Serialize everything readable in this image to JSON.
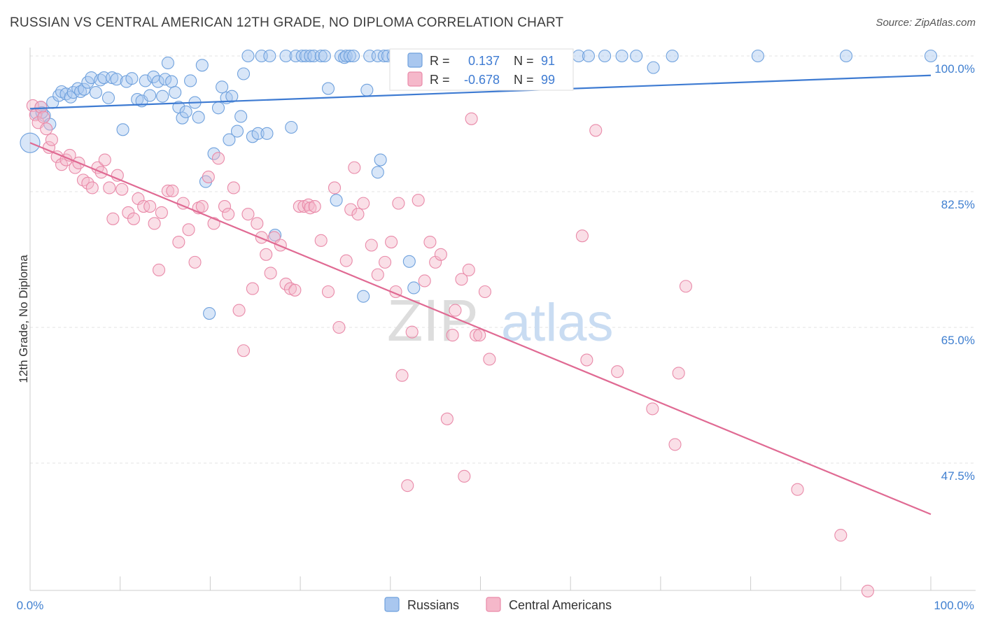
{
  "title": "RUSSIAN VS CENTRAL AMERICAN 12TH GRADE, NO DIPLOMA CORRELATION CHART",
  "source": "Source: ZipAtlas.com",
  "watermark": {
    "left": "ZIP",
    "right": "atlas"
  },
  "colors": {
    "blue": "#6fa1dd",
    "blue_fill": "#a9c7ef",
    "blue_line": "#3e7bd2",
    "pink": "#e98aa9",
    "pink_fill": "#f5b8ca",
    "pink_line": "#e06a93",
    "axis_text": "#3f7fd0",
    "grid": "#e3e3e3",
    "text": "#333333"
  },
  "chart_data": {
    "type": "scatter",
    "xlabel": "",
    "ylabel": "12th Grade, No Diploma",
    "xlim": [
      0,
      100
    ],
    "ylim": [
      30,
      100
    ],
    "x_tick_labels": [
      "0.0%",
      "100.0%"
    ],
    "y_ticks": [
      {
        "value": 100.0,
        "label": "100.0%"
      },
      {
        "value": 82.5,
        "label": "82.5%"
      },
      {
        "value": 65.0,
        "label": "65.0%"
      },
      {
        "value": 47.5,
        "label": "47.5%"
      }
    ],
    "legend_position": "top-center",
    "legend": [
      {
        "r_label": "R =",
        "r_value": "0.137",
        "n_label": "N =",
        "n_value": "91"
      },
      {
        "r_label": "R =",
        "r_value": "-0.678",
        "n_label": "N =",
        "n_value": "99"
      }
    ],
    "bottom_legend": [
      "Russians",
      "Central Americans"
    ],
    "series": [
      {
        "name": "Russians",
        "trendline": {
          "x": [
            0,
            100
          ],
          "y": [
            93.2,
            97.5
          ]
        },
        "points": [
          [
            0.0,
            88.8
          ],
          [
            0.7,
            92.6
          ],
          [
            1.2,
            93.4
          ],
          [
            1.6,
            92.3
          ],
          [
            1.3,
            92.7
          ],
          [
            2.2,
            91.2
          ],
          [
            2.5,
            94.0
          ],
          [
            3.2,
            94.9
          ],
          [
            3.5,
            95.4
          ],
          [
            4.0,
            95.1
          ],
          [
            4.5,
            94.7
          ],
          [
            4.8,
            95.3
          ],
          [
            5.3,
            95.8
          ],
          [
            5.6,
            95.4
          ],
          [
            6.0,
            95.7
          ],
          [
            6.4,
            96.6
          ],
          [
            6.8,
            97.2
          ],
          [
            7.3,
            95.3
          ],
          [
            7.8,
            96.9
          ],
          [
            8.2,
            97.2
          ],
          [
            8.7,
            94.6
          ],
          [
            9.1,
            97.2
          ],
          [
            9.6,
            97.0
          ],
          [
            10.3,
            90.5
          ],
          [
            10.7,
            96.7
          ],
          [
            11.3,
            97.1
          ],
          [
            11.9,
            94.4
          ],
          [
            12.4,
            94.2
          ],
          [
            12.8,
            96.8
          ],
          [
            13.3,
            94.9
          ],
          [
            13.7,
            97.3
          ],
          [
            14.2,
            96.7
          ],
          [
            14.7,
            94.8
          ],
          [
            15.0,
            97.0
          ],
          [
            15.3,
            99.1
          ],
          [
            15.7,
            96.7
          ],
          [
            16.1,
            95.3
          ],
          [
            16.5,
            93.4
          ],
          [
            16.9,
            92.0
          ],
          [
            17.3,
            92.8
          ],
          [
            17.8,
            96.8
          ],
          [
            18.3,
            94.0
          ],
          [
            18.7,
            92.1
          ],
          [
            19.1,
            98.8
          ],
          [
            19.5,
            83.8
          ],
          [
            19.9,
            66.8
          ],
          [
            20.4,
            87.4
          ],
          [
            20.9,
            93.3
          ],
          [
            21.3,
            96.0
          ],
          [
            21.8,
            94.6
          ],
          [
            22.1,
            89.2
          ],
          [
            22.4,
            94.8
          ],
          [
            23.0,
            90.3
          ],
          [
            23.4,
            92.2
          ],
          [
            23.7,
            97.7
          ],
          [
            24.2,
            100.0
          ],
          [
            24.7,
            89.6
          ],
          [
            25.3,
            90.0
          ],
          [
            25.7,
            100.0
          ],
          [
            26.3,
            90.0
          ],
          [
            26.6,
            100.0
          ],
          [
            27.2,
            76.9
          ],
          [
            28.4,
            100.0
          ],
          [
            29.0,
            90.8
          ],
          [
            29.5,
            100.0
          ],
          [
            30.2,
            100.0
          ],
          [
            30.6,
            100.0
          ],
          [
            31.1,
            100.0
          ],
          [
            31.5,
            100.0
          ],
          [
            32.3,
            100.0
          ],
          [
            32.7,
            100.0
          ],
          [
            33.1,
            95.8
          ],
          [
            34.0,
            81.4
          ],
          [
            34.5,
            100.0
          ],
          [
            34.9,
            99.8
          ],
          [
            35.1,
            100.0
          ],
          [
            35.5,
            100.0
          ],
          [
            35.9,
            100.0
          ],
          [
            37.0,
            69.0
          ],
          [
            37.4,
            95.6
          ],
          [
            37.7,
            100.0
          ],
          [
            38.6,
            85.0
          ],
          [
            38.9,
            86.6
          ],
          [
            38.6,
            100.0
          ],
          [
            39.3,
            100.0
          ],
          [
            39.7,
            100.0
          ],
          [
            40.3,
            100.0
          ],
          [
            41.3,
            100.0
          ],
          [
            42.1,
            73.5
          ],
          [
            42.6,
            70.1
          ],
          [
            42.9,
            100.0
          ],
          [
            43.2,
            100.0
          ],
          [
            43.6,
            100.0
          ],
          [
            44.1,
            100.0
          ],
          [
            45.2,
            100.0
          ],
          [
            46.6,
            100.0
          ],
          [
            47.3,
            100.0
          ],
          [
            48.2,
            100.0
          ],
          [
            49.1,
            100.0
          ],
          [
            49.6,
            100.0
          ],
          [
            49.9,
            100.0
          ],
          [
            50.3,
            100.0
          ],
          [
            51.1,
            100.0
          ],
          [
            51.9,
            100.0
          ],
          [
            52.8,
            100.0
          ],
          [
            53.7,
            100.0
          ],
          [
            54.5,
            100.0
          ],
          [
            55.1,
            100.0
          ],
          [
            56.0,
            100.0
          ],
          [
            57.4,
            100.0
          ],
          [
            58.6,
            100.0
          ],
          [
            59.5,
            100.0
          ],
          [
            60.9,
            100.0
          ],
          [
            62.0,
            100.0
          ],
          [
            63.8,
            100.0
          ],
          [
            65.7,
            100.0
          ],
          [
            67.3,
            100.0
          ],
          [
            69.2,
            98.5
          ],
          [
            71.3,
            100.0
          ],
          [
            80.8,
            100.0
          ],
          [
            90.6,
            100.0
          ],
          [
            100.0,
            100.0
          ]
        ]
      },
      {
        "name": "Central Americans",
        "trendline": {
          "x": [
            0,
            100
          ],
          "y": [
            88.8,
            40.9
          ]
        },
        "points": [
          [
            0.3,
            93.6
          ],
          [
            0.6,
            92.4
          ],
          [
            0.9,
            91.4
          ],
          [
            1.2,
            93.4
          ],
          [
            1.5,
            92.1
          ],
          [
            1.8,
            90.6
          ],
          [
            2.1,
            88.2
          ],
          [
            2.4,
            89.2
          ],
          [
            3.0,
            87.0
          ],
          [
            3.5,
            86.0
          ],
          [
            4.0,
            86.6
          ],
          [
            4.4,
            87.2
          ],
          [
            5.0,
            85.6
          ],
          [
            5.4,
            86.2
          ],
          [
            5.9,
            84.0
          ],
          [
            6.4,
            83.6
          ],
          [
            6.9,
            83.0
          ],
          [
            7.5,
            85.6
          ],
          [
            7.9,
            85.0
          ],
          [
            8.3,
            86.6
          ],
          [
            8.8,
            83.0
          ],
          [
            9.2,
            79.0
          ],
          [
            9.7,
            84.6
          ],
          [
            10.2,
            82.8
          ],
          [
            10.9,
            79.8
          ],
          [
            11.5,
            79.0
          ],
          [
            12.0,
            81.6
          ],
          [
            12.6,
            80.6
          ],
          [
            13.3,
            80.6
          ],
          [
            13.8,
            78.4
          ],
          [
            14.3,
            72.4
          ],
          [
            14.6,
            79.8
          ],
          [
            15.3,
            82.6
          ],
          [
            15.8,
            82.6
          ],
          [
            16.5,
            76.0
          ],
          [
            17.0,
            81.0
          ],
          [
            17.6,
            77.6
          ],
          [
            18.3,
            73.4
          ],
          [
            18.7,
            80.4
          ],
          [
            19.1,
            80.6
          ],
          [
            19.8,
            84.4
          ],
          [
            20.4,
            78.4
          ],
          [
            20.9,
            86.8
          ],
          [
            21.6,
            80.6
          ],
          [
            22.0,
            79.6
          ],
          [
            22.6,
            83.0
          ],
          [
            23.2,
            67.2
          ],
          [
            23.7,
            62.0
          ],
          [
            24.2,
            79.6
          ],
          [
            24.7,
            70.0
          ],
          [
            25.2,
            78.4
          ],
          [
            25.7,
            76.6
          ],
          [
            26.2,
            74.4
          ],
          [
            26.7,
            72.0
          ],
          [
            27.1,
            76.6
          ],
          [
            27.8,
            75.6
          ],
          [
            28.4,
            70.6
          ],
          [
            28.9,
            70.0
          ],
          [
            29.4,
            69.8
          ],
          [
            29.9,
            80.6
          ],
          [
            30.4,
            80.6
          ],
          [
            30.9,
            80.8
          ],
          [
            31.1,
            80.4
          ],
          [
            31.6,
            80.6
          ],
          [
            32.3,
            76.2
          ],
          [
            33.1,
            69.6
          ],
          [
            33.8,
            83.0
          ],
          [
            34.3,
            65.0
          ],
          [
            35.1,
            73.6
          ],
          [
            35.6,
            80.2
          ],
          [
            36.0,
            85.6
          ],
          [
            36.4,
            79.6
          ],
          [
            37.0,
            81.0
          ],
          [
            37.9,
            75.6
          ],
          [
            38.6,
            71.8
          ],
          [
            39.4,
            73.4
          ],
          [
            40.1,
            76.0
          ],
          [
            40.6,
            69.6
          ],
          [
            40.9,
            81.0
          ],
          [
            41.3,
            58.8
          ],
          [
            41.9,
            44.6
          ],
          [
            42.4,
            64.4
          ],
          [
            43.1,
            81.4
          ],
          [
            43.8,
            71.0
          ],
          [
            44.4,
            76.0
          ],
          [
            45.0,
            73.4
          ],
          [
            45.6,
            74.4
          ],
          [
            46.3,
            53.2
          ],
          [
            46.9,
            64.0
          ],
          [
            47.2,
            67.2
          ],
          [
            47.9,
            71.2
          ],
          [
            48.2,
            45.8
          ],
          [
            48.7,
            72.4
          ],
          [
            49.0,
            91.9
          ],
          [
            49.5,
            64.0
          ],
          [
            49.9,
            64.0
          ],
          [
            50.5,
            69.6
          ],
          [
            51.0,
            60.9
          ],
          [
            61.3,
            76.8
          ],
          [
            61.8,
            60.8
          ],
          [
            62.8,
            90.4
          ],
          [
            65.2,
            59.3
          ],
          [
            69.1,
            54.5
          ],
          [
            71.6,
            49.9
          ],
          [
            72.0,
            59.1
          ],
          [
            72.8,
            70.3
          ],
          [
            85.2,
            44.1
          ],
          [
            90.0,
            38.2
          ],
          [
            93.0,
            31.0
          ]
        ]
      }
    ]
  }
}
